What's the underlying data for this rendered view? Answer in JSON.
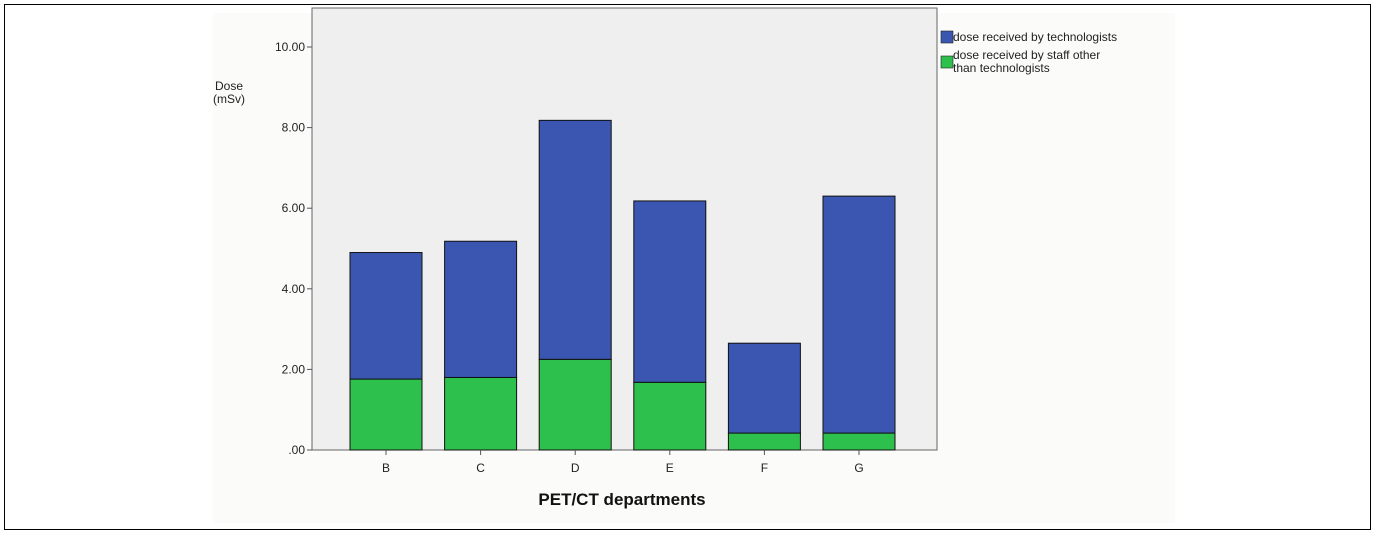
{
  "chart_data": {
    "type": "bar",
    "stacked": true,
    "categories": [
      "B",
      "C",
      "D",
      "E",
      "F",
      "G"
    ],
    "series": [
      {
        "name": "dose received by staff other than technologists",
        "values": [
          1.76,
          1.8,
          2.25,
          1.68,
          0.42,
          0.42
        ]
      },
      {
        "name": "dose received by technologists",
        "values": [
          3.14,
          3.38,
          5.93,
          4.5,
          2.23,
          5.88
        ]
      }
    ],
    "colors": {
      "dose received by technologists": "#3a56b0",
      "dose received by staff other than technologists": "#2ec04d"
    },
    "xlabel": "PET/CT departments",
    "ylabel": [
      "Dose",
      "(mSv)"
    ],
    "ylim": [
      0,
      10
    ],
    "yticks": [
      ".00",
      "2.00",
      "4.00",
      "6.00",
      "8.00",
      "10.00"
    ],
    "legend": "top-right",
    "grid": false
  },
  "legend": {
    "tech_label": "dose received by technologists",
    "staff_label_1": "dose received by staff other",
    "staff_label_2": "than technologists"
  }
}
